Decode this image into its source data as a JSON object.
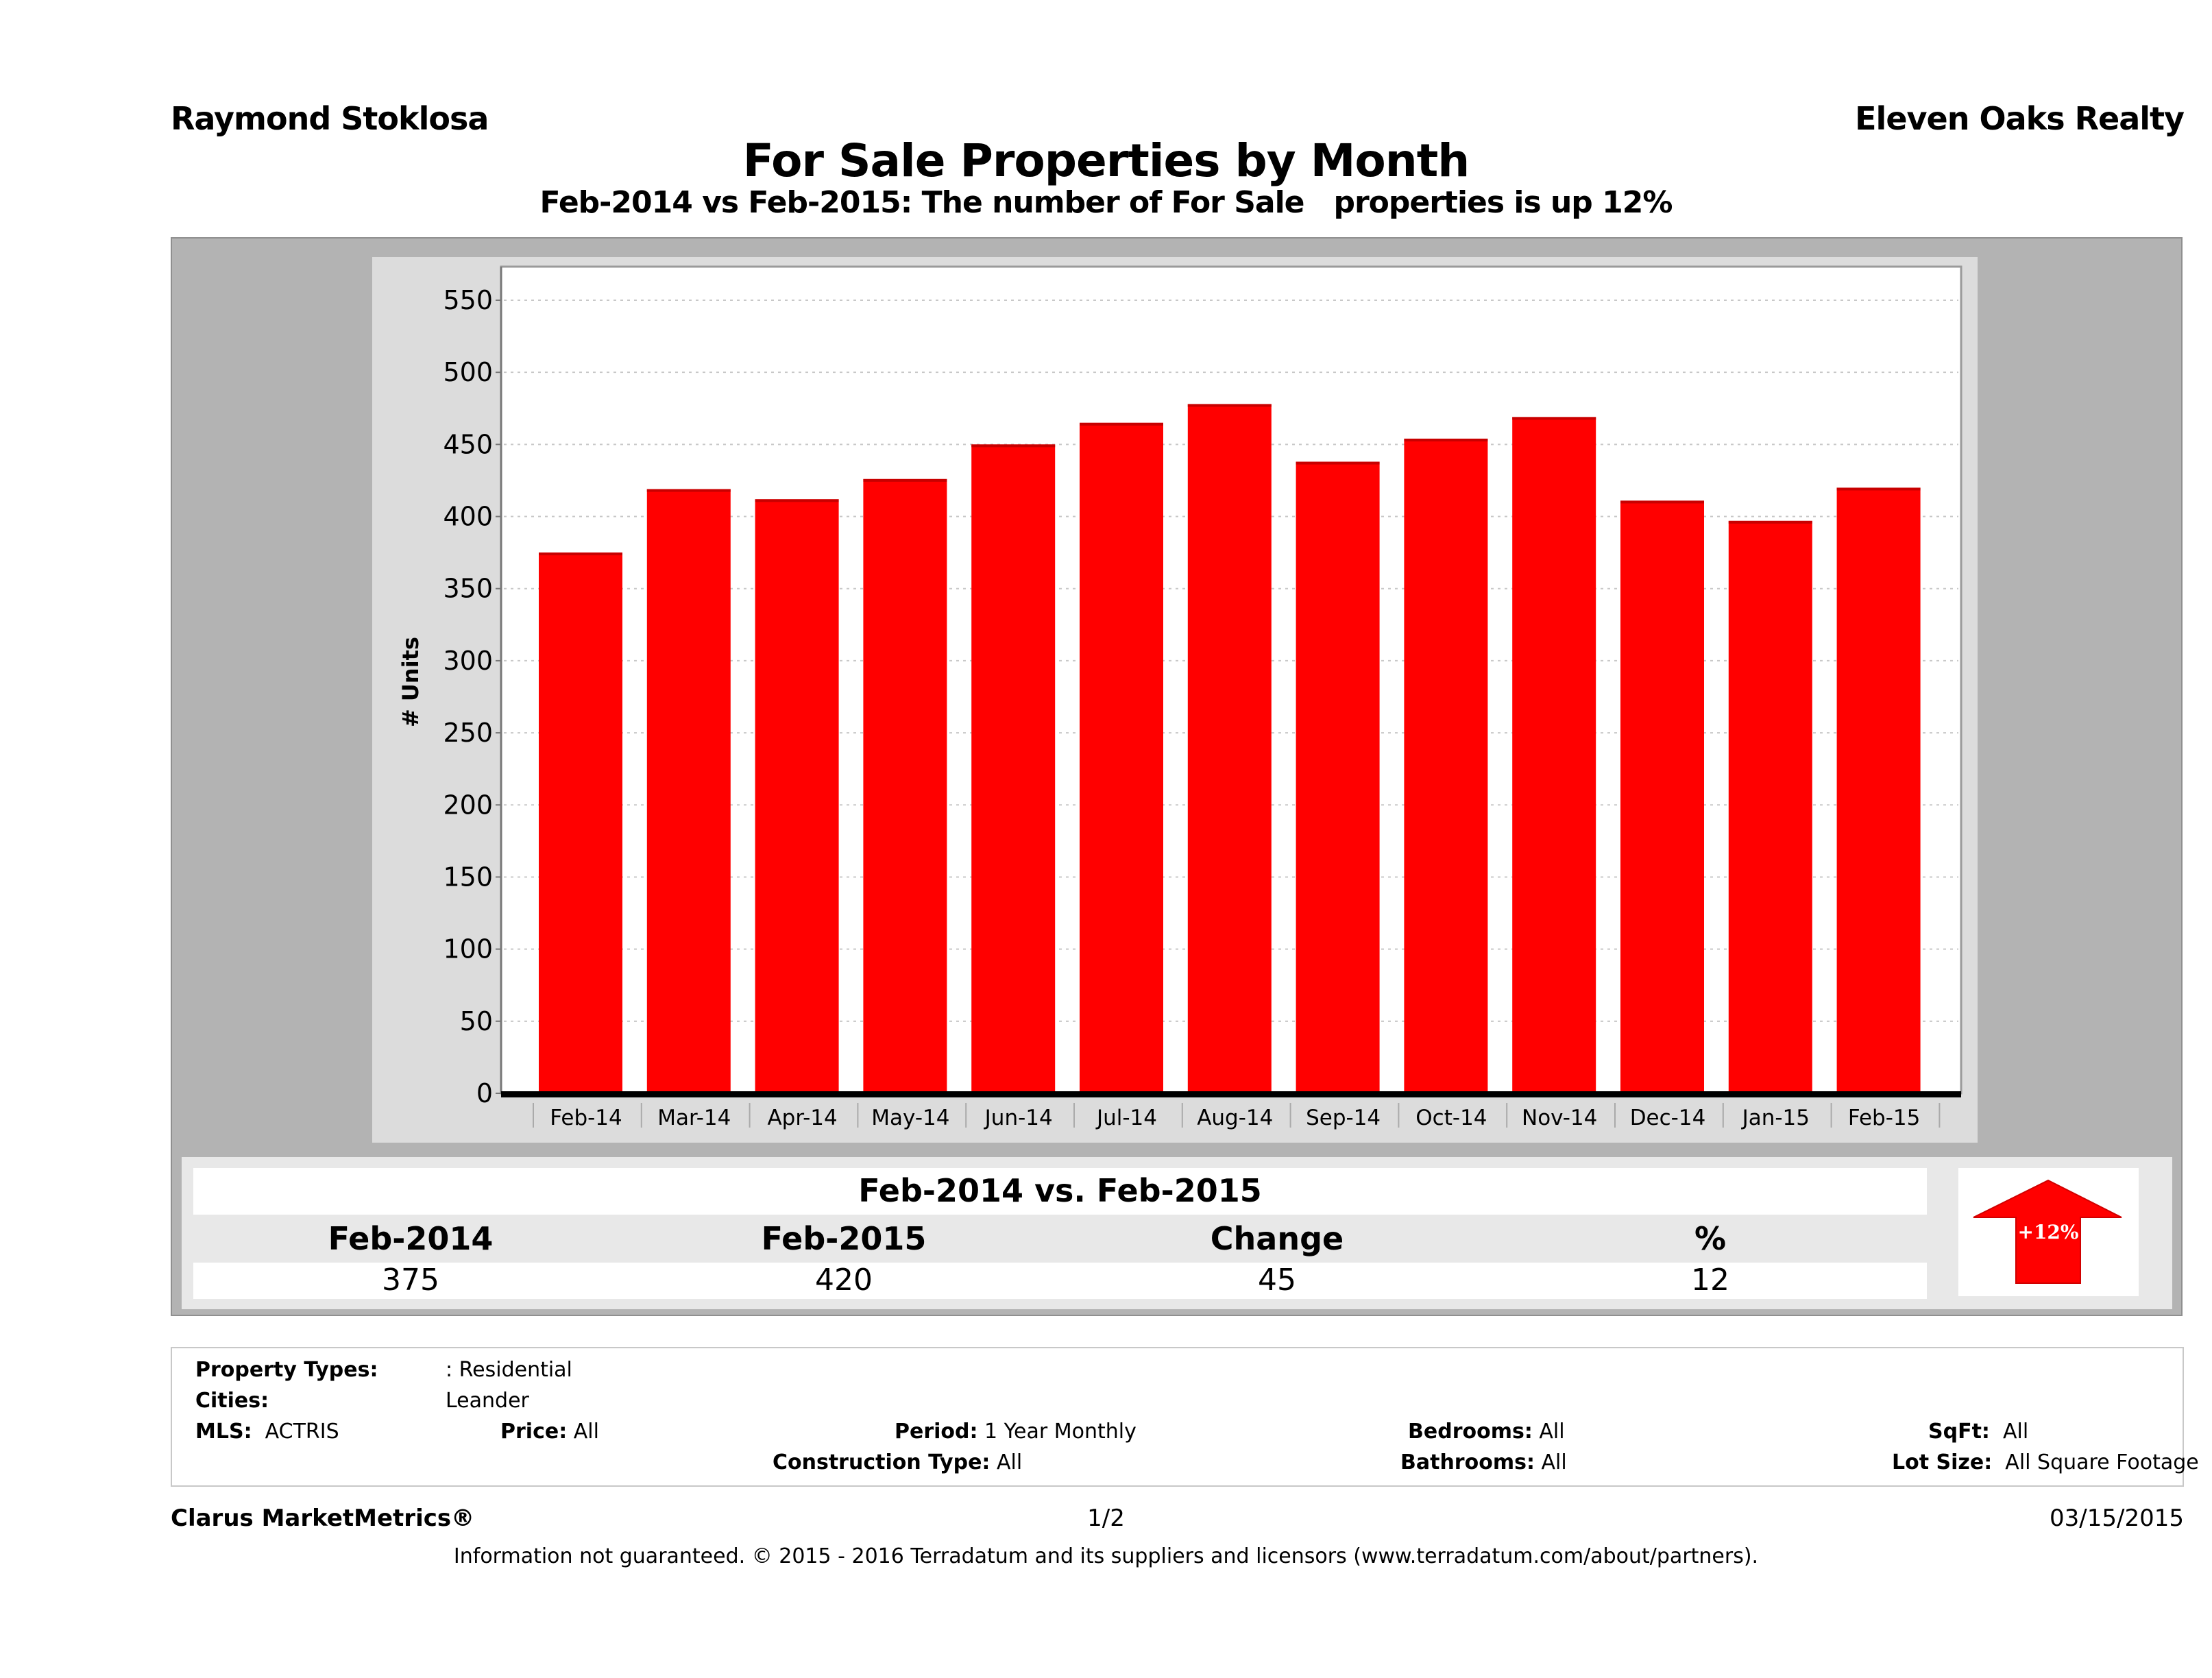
{
  "header": {
    "agent_name": "Raymond Stoklosa",
    "brokerage": "Eleven Oaks Realty",
    "title": "For Sale Properties by Month",
    "subtitle": "Feb-2014 vs Feb-2015: The number of For Sale   properties is up 12%"
  },
  "colors": {
    "bar": "#ff0000",
    "bar_top": "#c80000",
    "outer_panel": "#b3b3b3",
    "chart_panel": "#dcdcdc",
    "plot_bg": "#ffffff",
    "arrow": "#ff0000"
  },
  "chart_data": {
    "type": "bar",
    "title": "For Sale Properties by Month",
    "xlabel": "",
    "ylabel": "# Units",
    "ylim": [
      0,
      570
    ],
    "yticks": [
      0,
      50,
      100,
      150,
      200,
      250,
      300,
      350,
      400,
      450,
      500,
      550
    ],
    "grid": true,
    "legend": "none",
    "categories": [
      "Feb-14",
      "Mar-14",
      "Apr-14",
      "May-14",
      "Jun-14",
      "Jul-14",
      "Aug-14",
      "Sep-14",
      "Oct-14",
      "Nov-14",
      "Dec-14",
      "Jan-15",
      "Feb-15"
    ],
    "series": [
      {
        "name": "For Sale",
        "values": [
          375,
          419,
          412,
          426,
          450,
          465,
          478,
          438,
          454,
          469,
          411,
          397,
          420
        ]
      }
    ]
  },
  "summary": {
    "title": "Feb-2014 vs. Feb-2015",
    "columns": [
      "Feb-2014",
      "Feb-2015",
      "Change",
      "%"
    ],
    "values": [
      "375",
      "420",
      "45",
      "12"
    ],
    "badge": {
      "icon": "up-arrow-icon",
      "label": "+12%"
    }
  },
  "criteria": {
    "property_types_label": "Property Types:",
    "property_types_value": ": Residential",
    "cities_label": "Cities:",
    "cities_value": "Leander",
    "mls_label": "MLS:",
    "mls_value": "ACTRIS",
    "price_label": "Price:",
    "price_value": "All",
    "period_label": "Period:",
    "period_value": "1 Year Monthly",
    "construction_label": "Construction Type:",
    "construction_value": "All",
    "bedrooms_label": "Bedrooms:",
    "bedrooms_value": "All",
    "bathrooms_label": "Bathrooms:",
    "bathrooms_value": "All",
    "sqft_label": "SqFt:",
    "sqft_value": "All",
    "lot_label": "Lot Size:",
    "lot_value": "All Square Footage"
  },
  "footer": {
    "product": "Clarus MarketMetrics®",
    "page": "1/2",
    "date": "03/15/2015",
    "disclaimer": "Information not guaranteed. © 2015 - 2016 Terradatum and its suppliers and licensors (www.terradatum.com/about/partners)."
  }
}
